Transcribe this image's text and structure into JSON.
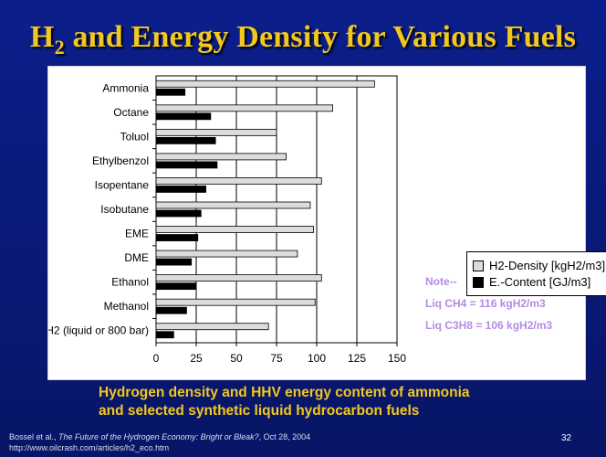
{
  "slide": {
    "title_main": "H",
    "title_sub": "2",
    "title_rest": " and Energy Density for Various Fuels",
    "caption_line1": "Hydrogen density and HHV energy content of ammonia",
    "caption_line2": "and selected synthetic liquid hydrocarbon fuels",
    "footer_authors": "Bossel et al., ",
    "footer_work": "The Future of the Hydrogen Economy: Bright or Bleak?",
    "footer_date": ", Oct 28, 2004",
    "footer_url": "http://www.oilcrash.com/articles/h2_eco.htm",
    "page_number": "32"
  },
  "note": {
    "heading": "Note--",
    "line1": "Liq CH4 = 116 kgH2/m3",
    "line2": "Liq C3H8 = 106 kgH2/m3"
  },
  "colors": {
    "h2_density_fill": "#dcdcdc",
    "energy_content_fill": "#000000",
    "title": "#f2c81e",
    "note": "#b38be6"
  },
  "chart_data": {
    "type": "bar",
    "orientation": "horizontal",
    "categories": [
      "Ammonia",
      "Octane",
      "Toluol",
      "Ethylbenzol",
      "Isopentane",
      "Isobutane",
      "EME",
      "DME",
      "Ethanol",
      "Methanol",
      "H2 (liquid or 800 bar)"
    ],
    "series": [
      {
        "name": "H2-Density [kgH2/m3]",
        "values": [
          136,
          110,
          75,
          81,
          103,
          96,
          98,
          88,
          103,
          99,
          70
        ]
      },
      {
        "name": "E.-Content [GJ/m3]",
        "values": [
          18,
          34,
          37,
          38,
          31,
          28,
          26,
          22,
          25,
          19,
          11
        ]
      }
    ],
    "xlim": [
      0,
      150
    ],
    "xticks": [
      "0",
      "25",
      "50",
      "75",
      "100",
      "125",
      "150"
    ],
    "grid": "vertical",
    "legend_position": "right"
  }
}
